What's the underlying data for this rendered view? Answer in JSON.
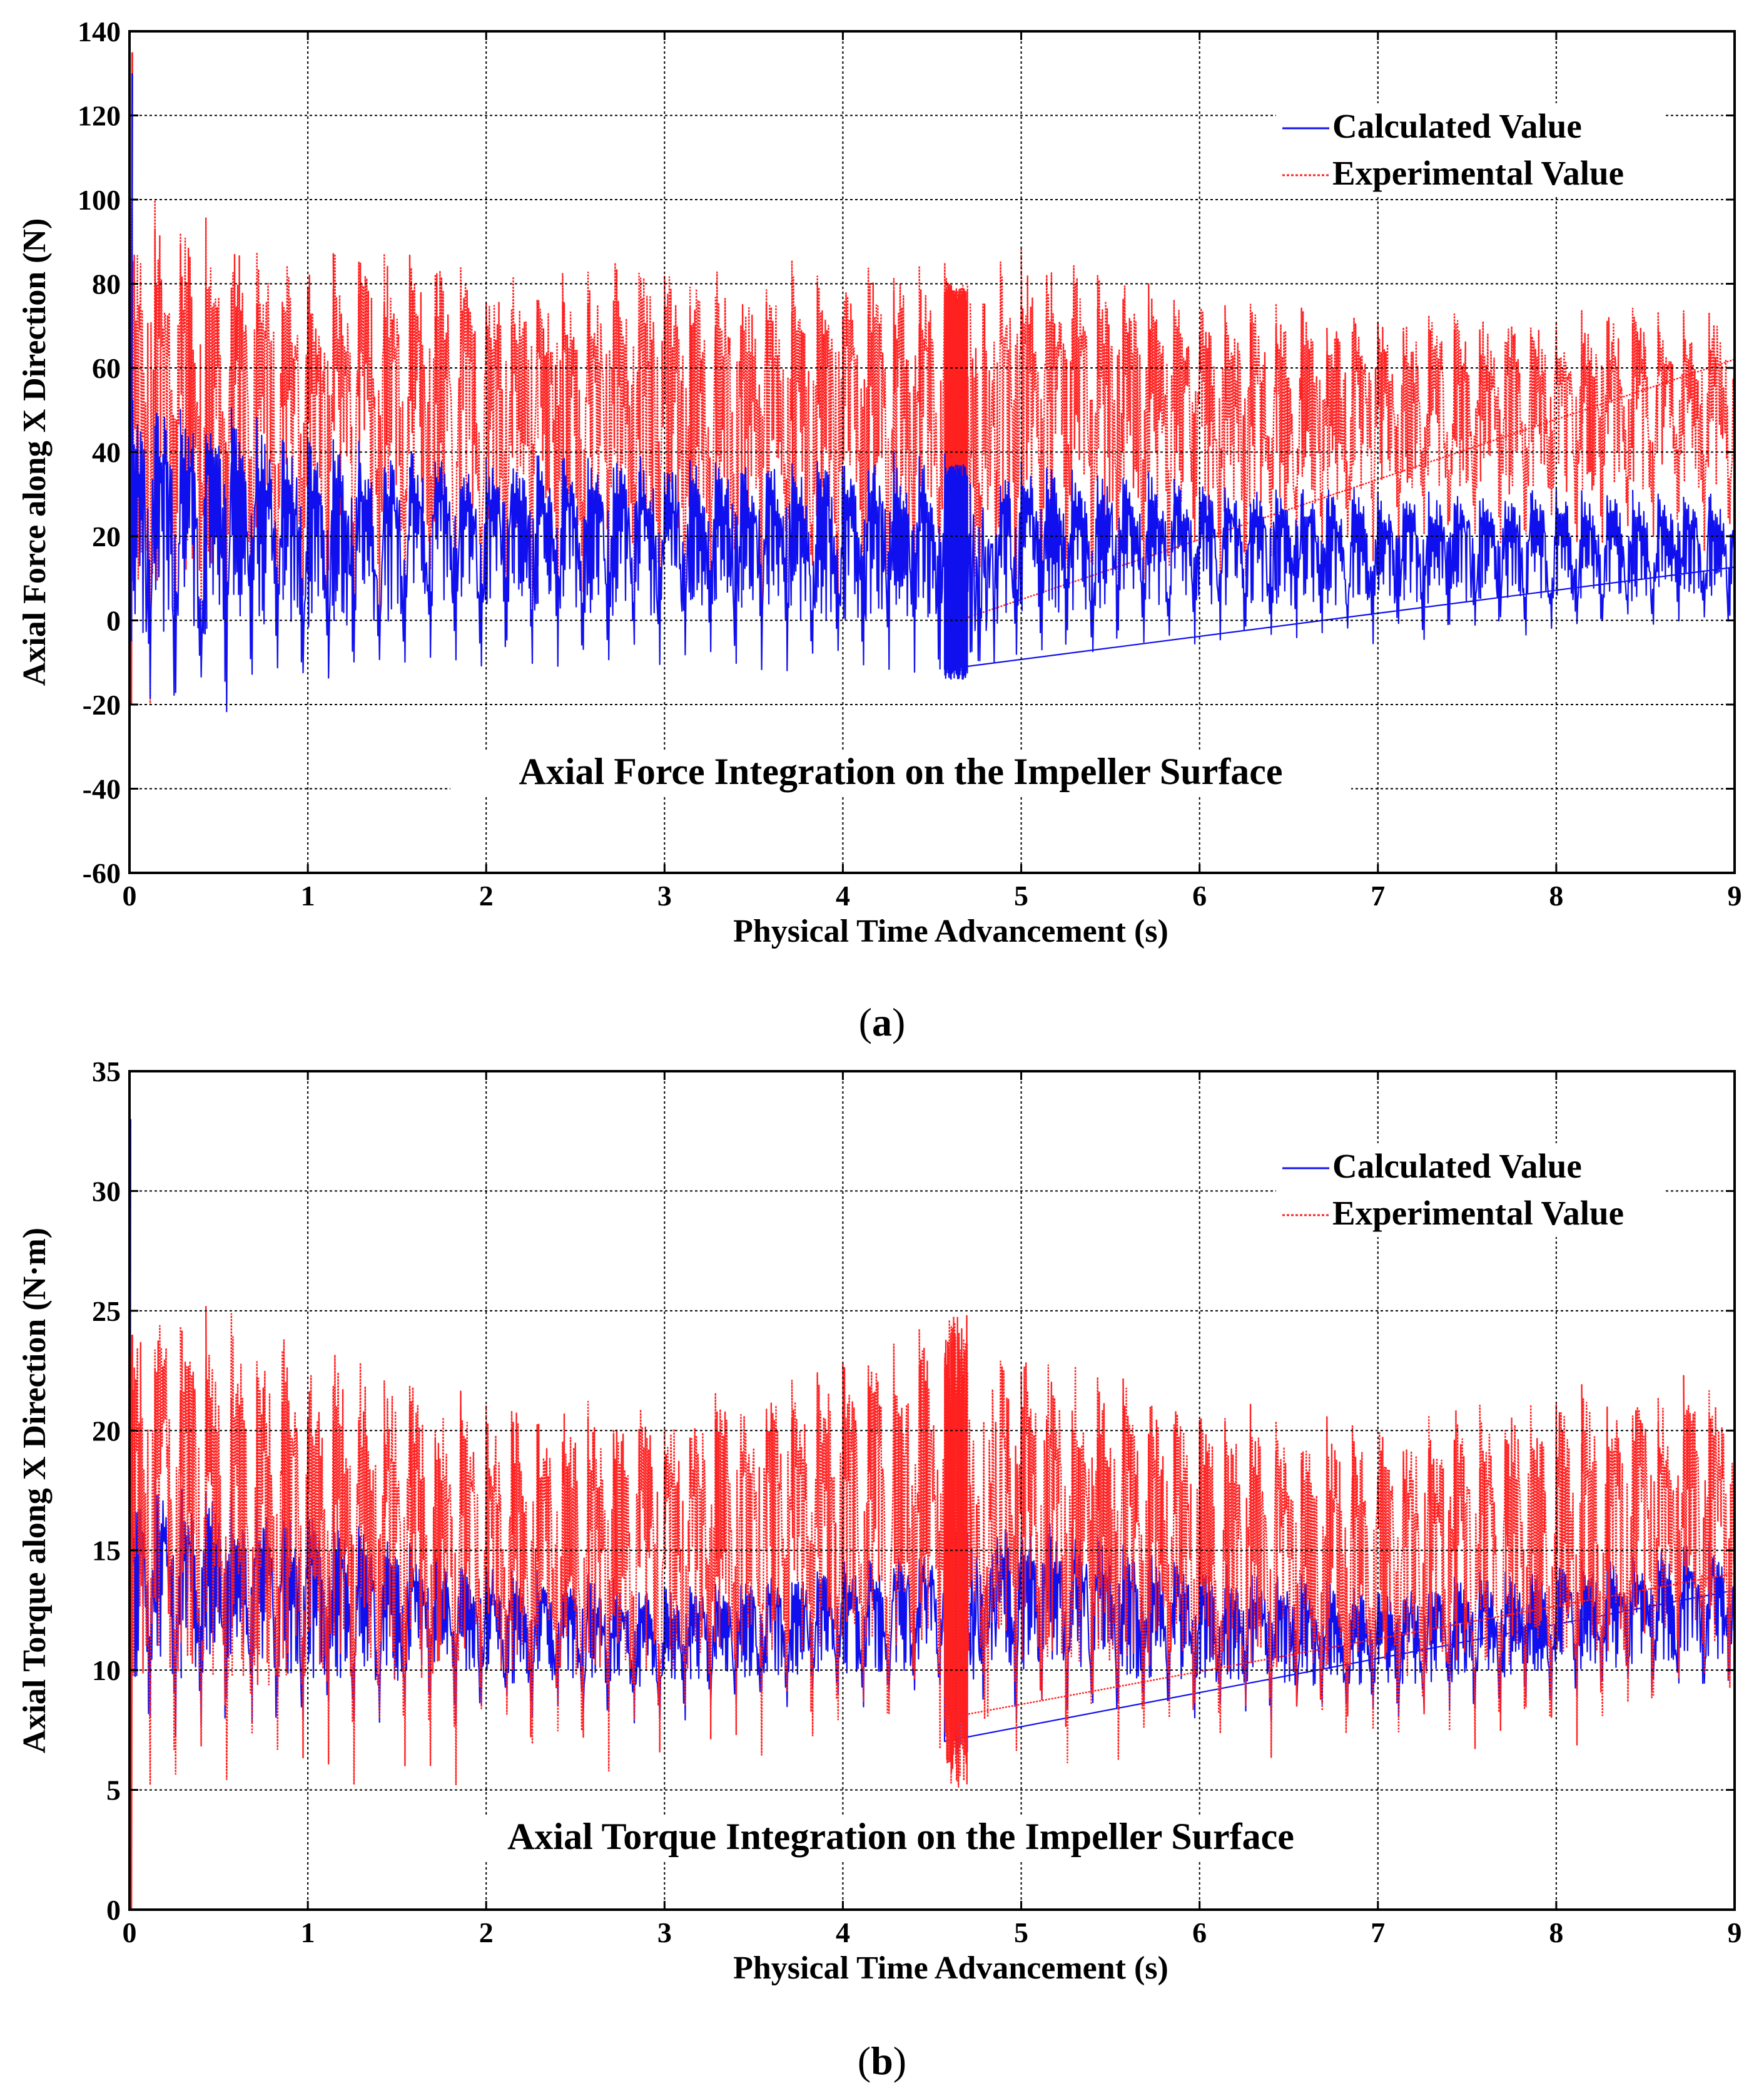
{
  "colors": {
    "calculated": "#1010ee",
    "experimental": "#ff2020",
    "grid": "#000000"
  },
  "chart_data": [
    {
      "type": "line",
      "panel_label": "a",
      "caption_open": "(",
      "caption_close": ")",
      "annotation": "Axial Force Integration on the Impeller Surface",
      "xlabel": "Physical Time Advancement (s)",
      "ylabel": "Axial Force along X Direction (N)",
      "xlim": [
        0,
        9
      ],
      "ylim": [
        -60,
        140
      ],
      "xticks": [
        "0",
        "1",
        "2",
        "3",
        "4",
        "5",
        "6",
        "7",
        "8",
        "9"
      ],
      "yticks": [
        "-60",
        "-40",
        "-20",
        "0",
        "20",
        "40",
        "60",
        "80",
        "100",
        "120",
        "140"
      ],
      "grid": true,
      "legend_position": "top-right",
      "series": [
        {
          "name": "Calculated Value",
          "style": "solid",
          "cycles_per_second": 7,
          "gap": [
            4.7,
            4.88
          ],
          "envelope_x": [
            0,
            0.3,
            1,
            2,
            3,
            4,
            4.7,
            4.9,
            6,
            7,
            8,
            9
          ],
          "envelope_max": [
            50,
            47,
            38,
            35,
            35,
            35,
            35,
            35,
            30,
            28,
            28,
            28
          ],
          "envelope_min": [
            -25,
            -22,
            -15,
            -10,
            -10,
            -12,
            -12,
            -10,
            -5,
            -5,
            -4,
            -3
          ],
          "spikes": [
            [
              0.0,
              -60,
              55
            ],
            [
              0.01,
              -5,
              130
            ]
          ]
        },
        {
          "name": "Experimental Value",
          "style": "dotted",
          "cycles_per_second": 7,
          "gap": [
            4.7,
            4.88
          ],
          "envelope_x": [
            0,
            0.3,
            1,
            2,
            3,
            4,
            4.7,
            4.9,
            6,
            7,
            8,
            9
          ],
          "envelope_max": [
            90,
            88,
            80,
            78,
            78,
            77,
            78,
            82,
            70,
            68,
            68,
            70
          ],
          "envelope_min": [
            -20,
            -15,
            0,
            0,
            0,
            0,
            0,
            5,
            10,
            15,
            18,
            18
          ],
          "spikes": [
            [
              0.01,
              -20,
              135
            ]
          ]
        }
      ]
    },
    {
      "type": "line",
      "panel_label": "b",
      "caption_open": "(",
      "caption_close": ")",
      "annotation": "Axial Torque Integration on the Impeller Surface",
      "xlabel": "Physical Time Advancement (s)",
      "ylabel": "Axial Torque along X Direction (N·m)",
      "xlim": [
        0,
        9
      ],
      "ylim": [
        0,
        35
      ],
      "xticks": [
        "0",
        "1",
        "2",
        "3",
        "4",
        "5",
        "6",
        "7",
        "8",
        "9"
      ],
      "yticks": [
        "0",
        "5",
        "10",
        "15",
        "20",
        "25",
        "30",
        "35"
      ],
      "grid": true,
      "legend_position": "top-right",
      "series": [
        {
          "name": "Calculated Value",
          "style": "solid",
          "cycles_per_second": 7,
          "gap": [
            4.7,
            4.88
          ],
          "envelope_x": [
            0,
            0.3,
            1,
            2,
            3,
            4,
            4.7,
            4.9,
            6,
            7,
            8,
            9
          ],
          "envelope_max": [
            17,
            17,
            16,
            14,
            13,
            14,
            15,
            16,
            14,
            13,
            14,
            15
          ],
          "envelope_min": [
            7,
            7,
            7.5,
            8,
            8,
            8.5,
            8.5,
            8,
            8,
            8,
            8.5,
            9
          ],
          "spikes": [
            [
              0.0,
              0,
              33
            ]
          ]
        },
        {
          "name": "Experimental Value",
          "style": "dotted",
          "cycles_per_second": 7,
          "gap": [
            4.7,
            4.88
          ],
          "envelope_x": [
            0,
            0.3,
            1,
            2,
            3,
            4,
            4.7,
            4.9,
            6,
            7,
            8,
            9
          ],
          "envelope_max": [
            24,
            23.5,
            22,
            20,
            20,
            22,
            23,
            22.5,
            20,
            19,
            20.5,
            21
          ],
          "envelope_min": [
            5,
            5,
            5,
            6,
            6.5,
            7,
            7,
            6.5,
            6.5,
            6.5,
            7,
            8
          ],
          "spikes": [
            [
              0.01,
              0,
              24
            ]
          ]
        }
      ]
    }
  ]
}
